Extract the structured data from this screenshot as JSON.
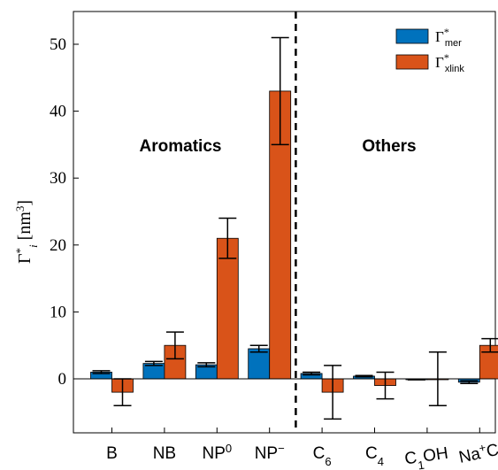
{
  "chart_data": {
    "type": "bar",
    "categories": [
      {
        "base": "B",
        "sub": "",
        "sup": ""
      },
      {
        "base": "NB",
        "sub": "",
        "sup": ""
      },
      {
        "base": "NP",
        "sub": "",
        "sup": "0"
      },
      {
        "base": "NP",
        "sub": "",
        "sup": "−"
      },
      {
        "base": "C",
        "sub": "6",
        "sup": ""
      },
      {
        "base": "C",
        "sub": "4",
        "sup": ""
      },
      {
        "base": "C",
        "sub": "1",
        "after": "OH",
        "sup": ""
      },
      {
        "base": "Na",
        "sup": "+",
        "after": "Cl",
        "sup2": "−"
      }
    ],
    "series": [
      {
        "name": "Γ*mer",
        "label_main": "Γ",
        "label_sup": "*",
        "label_sub": "mer",
        "color": "#0072BD",
        "values": [
          1.0,
          2.3,
          2.1,
          4.5,
          0.8,
          0.4,
          -0.1,
          -0.5
        ],
        "errors": [
          0.2,
          0.3,
          0.3,
          0.5,
          0.2,
          0.1,
          0.05,
          0.2
        ]
      },
      {
        "name": "Γ*xlink",
        "label_main": "Γ",
        "label_sup": "*",
        "label_sub": "xlink",
        "color": "#D95319",
        "values": [
          -2.0,
          5.0,
          21.0,
          43.0,
          -2.0,
          -1.0,
          0.0,
          5.0
        ],
        "errors": [
          2.0,
          2.0,
          3.0,
          8.0,
          4.0,
          2.0,
          4.0,
          1.0
        ]
      }
    ],
    "group_labels": [
      "Aromatics",
      "Others"
    ],
    "ylabel_main": "Γ",
    "ylabel_sub": "i",
    "ylabel_sup": "*",
    "ylabel_unit": " [nm",
    "ylabel_unit_sup": "3",
    "ylabel_close": "]",
    "yticks": [
      0,
      10,
      20,
      30,
      40,
      50
    ],
    "ylim": [
      -8,
      55
    ],
    "legend_position": "top-right",
    "divider_after_category": 4
  }
}
